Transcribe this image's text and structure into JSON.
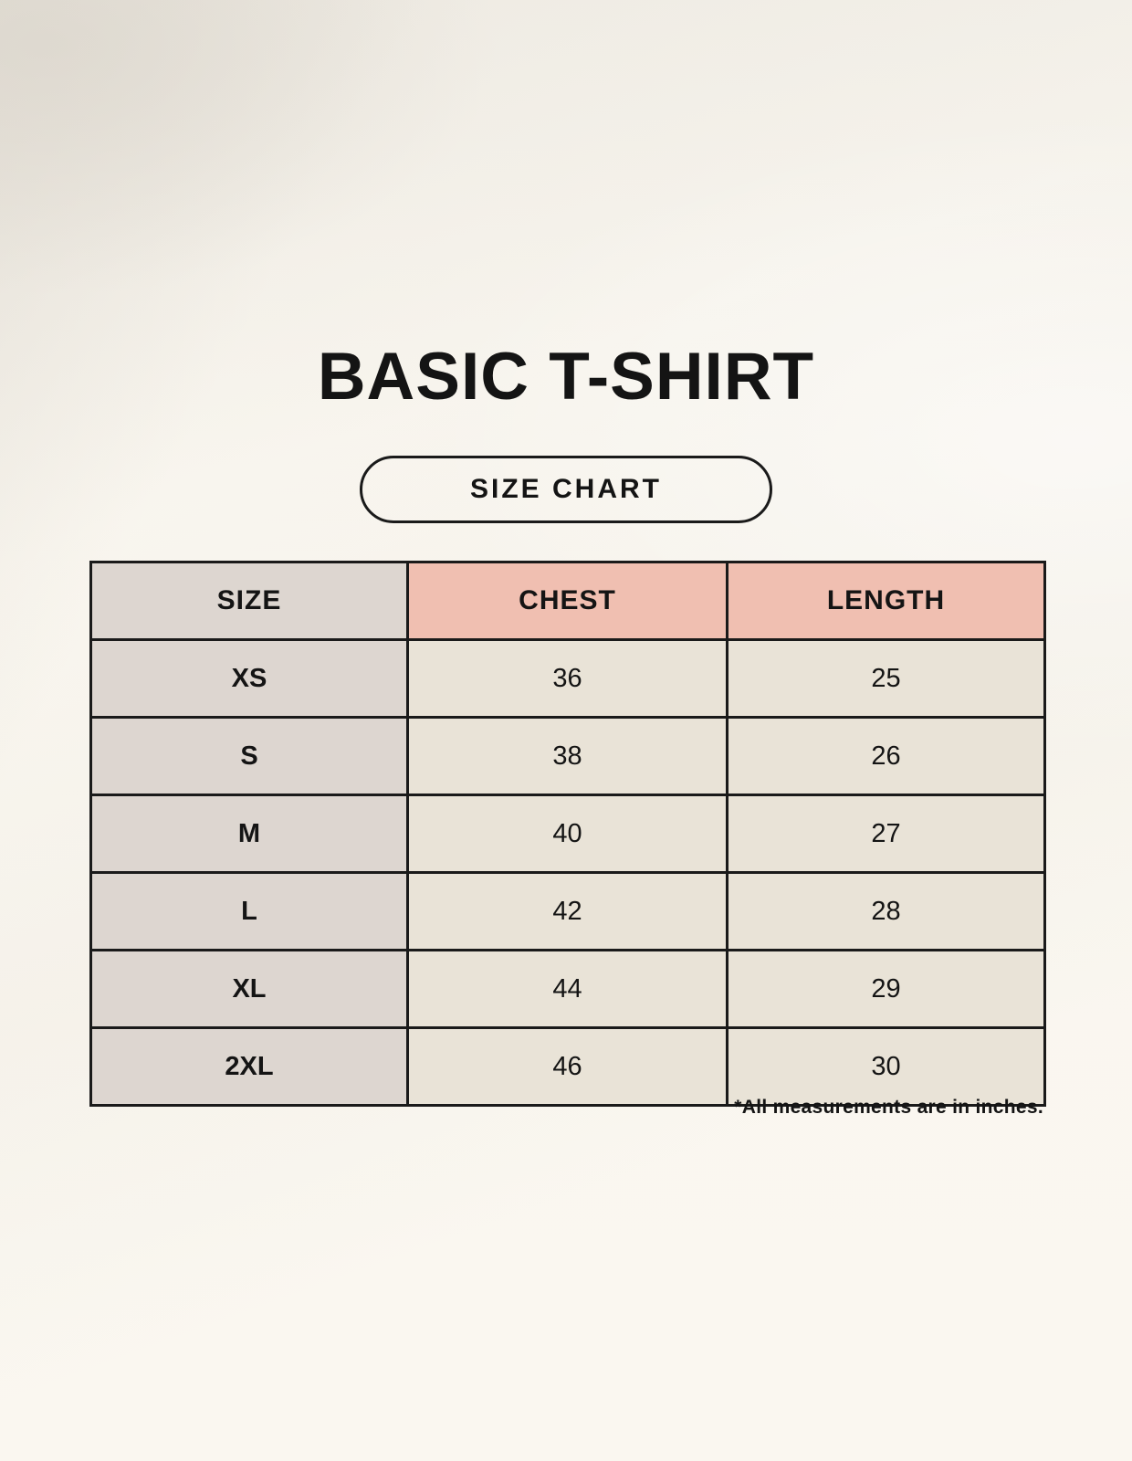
{
  "page": {
    "title": "BASIC T-SHIRT",
    "badge_label": "SIZE CHART",
    "footnote": "*All measurements are in inches."
  },
  "colors": {
    "background": "#f8f5ee",
    "header_accent": "#f0bfb1",
    "size_column": "#ddd6d0",
    "cell": "#e9e3d7",
    "border": "#1a1a1a",
    "text": "#141414"
  },
  "chart_data": {
    "type": "table",
    "title": "BASIC T-SHIRT",
    "columns": [
      "SIZE",
      "CHEST",
      "LENGTH"
    ],
    "rows": [
      {
        "size": "XS",
        "chest": "36",
        "length": "25"
      },
      {
        "size": "S",
        "chest": "38",
        "length": "26"
      },
      {
        "size": "M",
        "chest": "40",
        "length": "27"
      },
      {
        "size": "L",
        "chest": "42",
        "length": "28"
      },
      {
        "size": "XL",
        "chest": "44",
        "length": "29"
      },
      {
        "size": "2XL",
        "chest": "46",
        "length": "30"
      }
    ],
    "note": "*All measurements are in inches.",
    "units": "inches"
  }
}
